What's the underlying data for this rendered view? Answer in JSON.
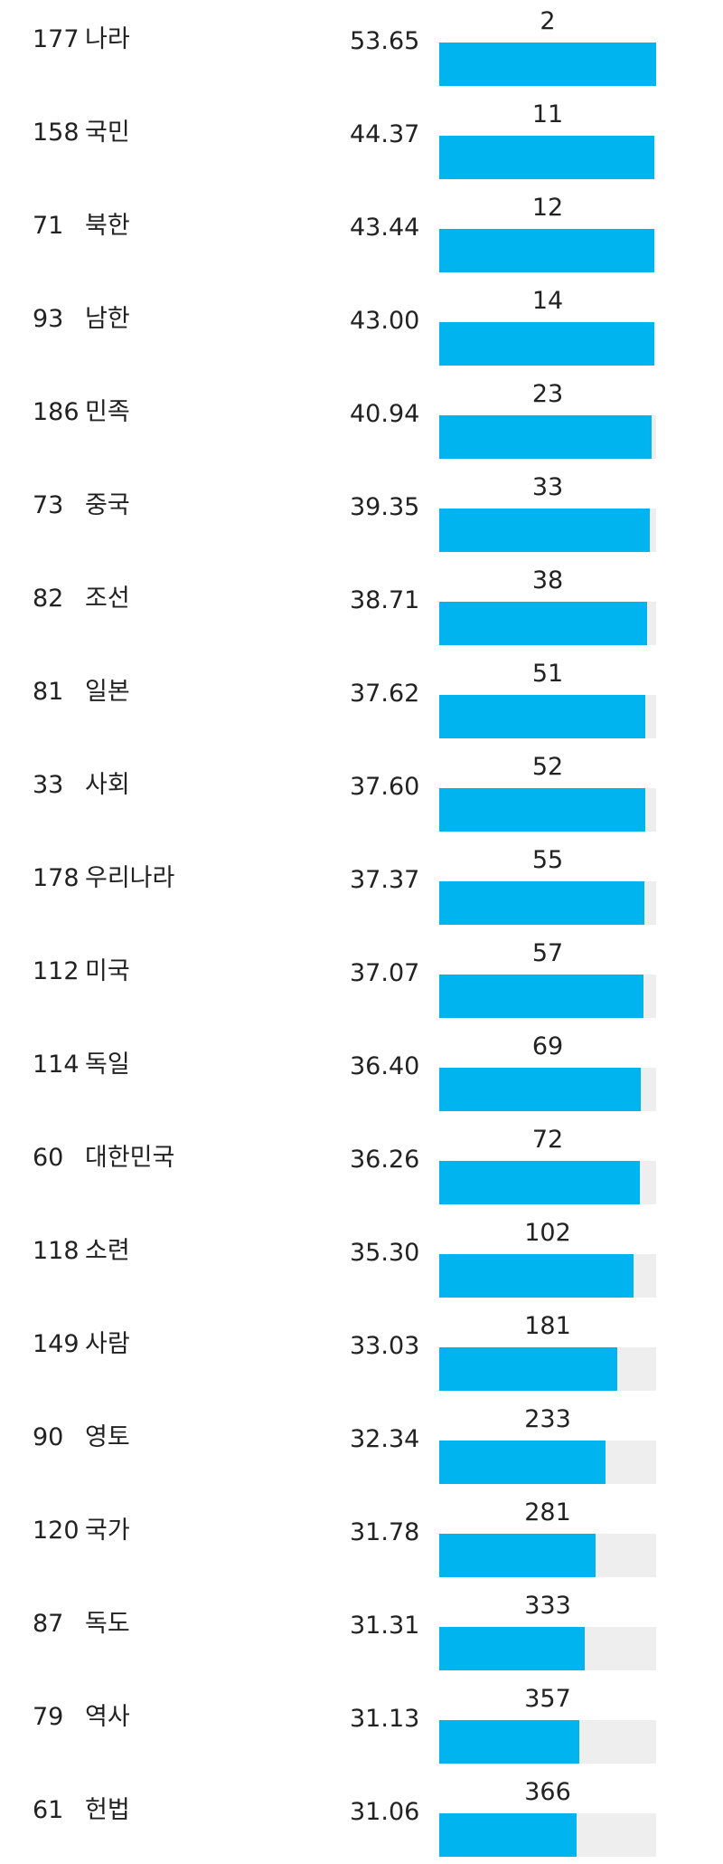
{
  "colors": {
    "bar_fill": "#00b4ef",
    "bar_track": "#eeeeee",
    "text": "#222222"
  },
  "chart_data": {
    "type": "bar",
    "orientation": "horizontal",
    "title": "",
    "xlabel": "",
    "ylabel": "",
    "bar_scale_range": [
      0,
      53.65
    ],
    "rows": [
      {
        "rank": "177",
        "word": "나라",
        "score": 53.65,
        "count": "2",
        "fill": 1.0
      },
      {
        "rank": "158",
        "word": "국민",
        "score": 44.37,
        "count": "11",
        "fill": 0.99
      },
      {
        "rank": "71",
        "word": "북한",
        "score": 43.44,
        "count": "12",
        "fill": 0.99
      },
      {
        "rank": "93",
        "word": "남한",
        "score": 43.0,
        "count": "14",
        "fill": 0.99
      },
      {
        "rank": "186",
        "word": "민족",
        "score": 40.94,
        "count": "23",
        "fill": 0.98
      },
      {
        "rank": "73",
        "word": "중국",
        "score": 39.35,
        "count": "33",
        "fill": 0.97
      },
      {
        "rank": "82",
        "word": "조선",
        "score": 38.71,
        "count": "38",
        "fill": 0.96
      },
      {
        "rank": "81",
        "word": "일본",
        "score": 37.62,
        "count": "51",
        "fill": 0.95
      },
      {
        "rank": "33",
        "word": "사회",
        "score": 37.6,
        "count": "52",
        "fill": 0.95
      },
      {
        "rank": "178",
        "word": "우리나라",
        "score": 37.37,
        "count": "55",
        "fill": 0.945
      },
      {
        "rank": "112",
        "word": "미국",
        "score": 37.07,
        "count": "57",
        "fill": 0.94
      },
      {
        "rank": "114",
        "word": "독일",
        "score": 36.4,
        "count": "69",
        "fill": 0.93
      },
      {
        "rank": "60",
        "word": "대한민국",
        "score": 36.26,
        "count": "72",
        "fill": 0.925
      },
      {
        "rank": "118",
        "word": "소련",
        "score": 35.3,
        "count": "102",
        "fill": 0.895
      },
      {
        "rank": "149",
        "word": "사람",
        "score": 33.03,
        "count": "181",
        "fill": 0.82
      },
      {
        "rank": "90",
        "word": "영토",
        "score": 32.34,
        "count": "233",
        "fill": 0.765
      },
      {
        "rank": "120",
        "word": "국가",
        "score": 31.78,
        "count": "281",
        "fill": 0.72
      },
      {
        "rank": "87",
        "word": "독도",
        "score": 31.31,
        "count": "333",
        "fill": 0.67
      },
      {
        "rank": "79",
        "word": "역사",
        "score": 31.13,
        "count": "357",
        "fill": 0.645
      },
      {
        "rank": "61",
        "word": "헌법",
        "score": 31.06,
        "count": "366",
        "fill": 0.635
      }
    ]
  }
}
